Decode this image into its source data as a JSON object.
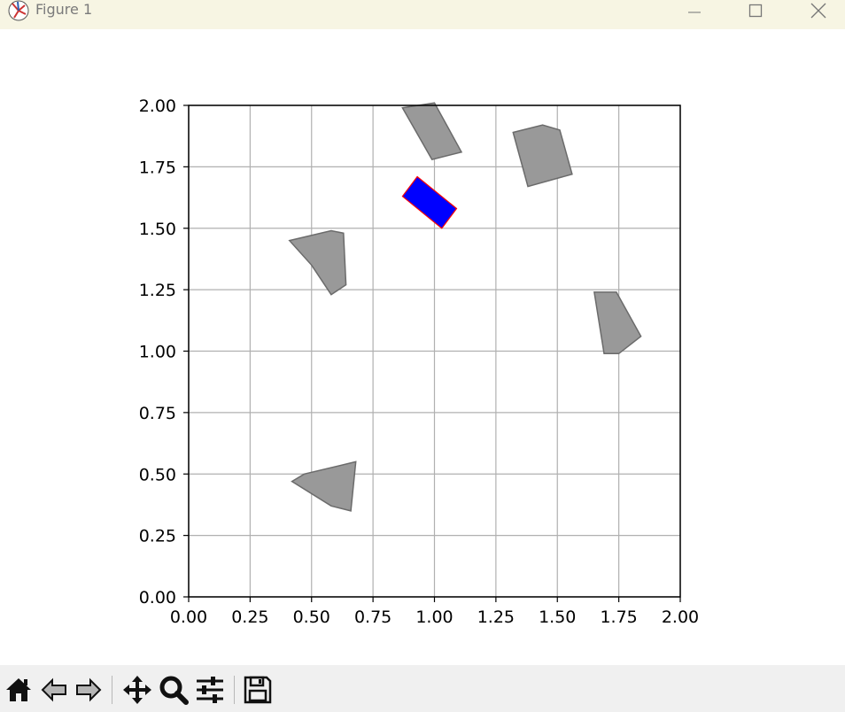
{
  "window": {
    "title": "Figure 1",
    "app_icon": "matplotlib-icon",
    "controls": [
      "minimize-icon",
      "maximize-icon",
      "close-icon"
    ]
  },
  "toolbar": {
    "buttons": [
      {
        "name": "home-button",
        "icon": "home-icon"
      },
      {
        "name": "back-button",
        "icon": "back-arrow-icon"
      },
      {
        "name": "forward-button",
        "icon": "forward-arrow-icon"
      },
      {
        "name": "pan-button",
        "icon": "move-icon"
      },
      {
        "name": "zoom-button",
        "icon": "magnifier-icon"
      },
      {
        "name": "configure-subplots-button",
        "icon": "sliders-icon"
      },
      {
        "name": "save-button",
        "icon": "floppy-disk-icon"
      }
    ]
  },
  "chart_data": {
    "type": "polygons",
    "xlim": [
      0,
      2
    ],
    "ylim": [
      0,
      2
    ],
    "grid": true,
    "xticks": [
      "0.00",
      "0.25",
      "0.50",
      "0.75",
      "1.00",
      "1.25",
      "1.50",
      "1.75",
      "2.00"
    ],
    "yticks": [
      "0.00",
      "0.25",
      "0.50",
      "0.75",
      "1.00",
      "1.25",
      "1.50",
      "1.75",
      "2.00"
    ],
    "colors": {
      "obstacle_fill": "#999999",
      "obstacle_edge": "#6b6b6b",
      "robot_fill": "#0000ff",
      "robot_edge": "#ff0000",
      "grid": "#b0b0b0"
    },
    "obstacles": [
      {
        "points": [
          [
            0.87,
            1.99
          ],
          [
            1.0,
            2.01
          ],
          [
            1.11,
            1.81
          ],
          [
            0.99,
            1.78
          ]
        ]
      },
      {
        "points": [
          [
            1.32,
            1.89
          ],
          [
            1.44,
            1.92
          ],
          [
            1.51,
            1.9
          ],
          [
            1.56,
            1.72
          ],
          [
            1.38,
            1.67
          ]
        ]
      },
      {
        "points": [
          [
            0.41,
            1.45
          ],
          [
            0.58,
            1.49
          ],
          [
            0.63,
            1.48
          ],
          [
            0.64,
            1.27
          ],
          [
            0.58,
            1.23
          ],
          [
            0.5,
            1.35
          ]
        ]
      },
      {
        "points": [
          [
            1.65,
            1.24
          ],
          [
            1.74,
            1.24
          ],
          [
            1.84,
            1.06
          ],
          [
            1.75,
            0.99
          ],
          [
            1.69,
            0.99
          ]
        ]
      },
      {
        "points": [
          [
            0.42,
            0.47
          ],
          [
            0.47,
            0.5
          ],
          [
            0.68,
            0.55
          ],
          [
            0.66,
            0.35
          ],
          [
            0.58,
            0.37
          ]
        ]
      }
    ],
    "robot": {
      "points": [
        [
          0.87,
          1.63
        ],
        [
          0.93,
          1.71
        ],
        [
          1.09,
          1.58
        ],
        [
          1.03,
          1.5
        ]
      ]
    }
  }
}
